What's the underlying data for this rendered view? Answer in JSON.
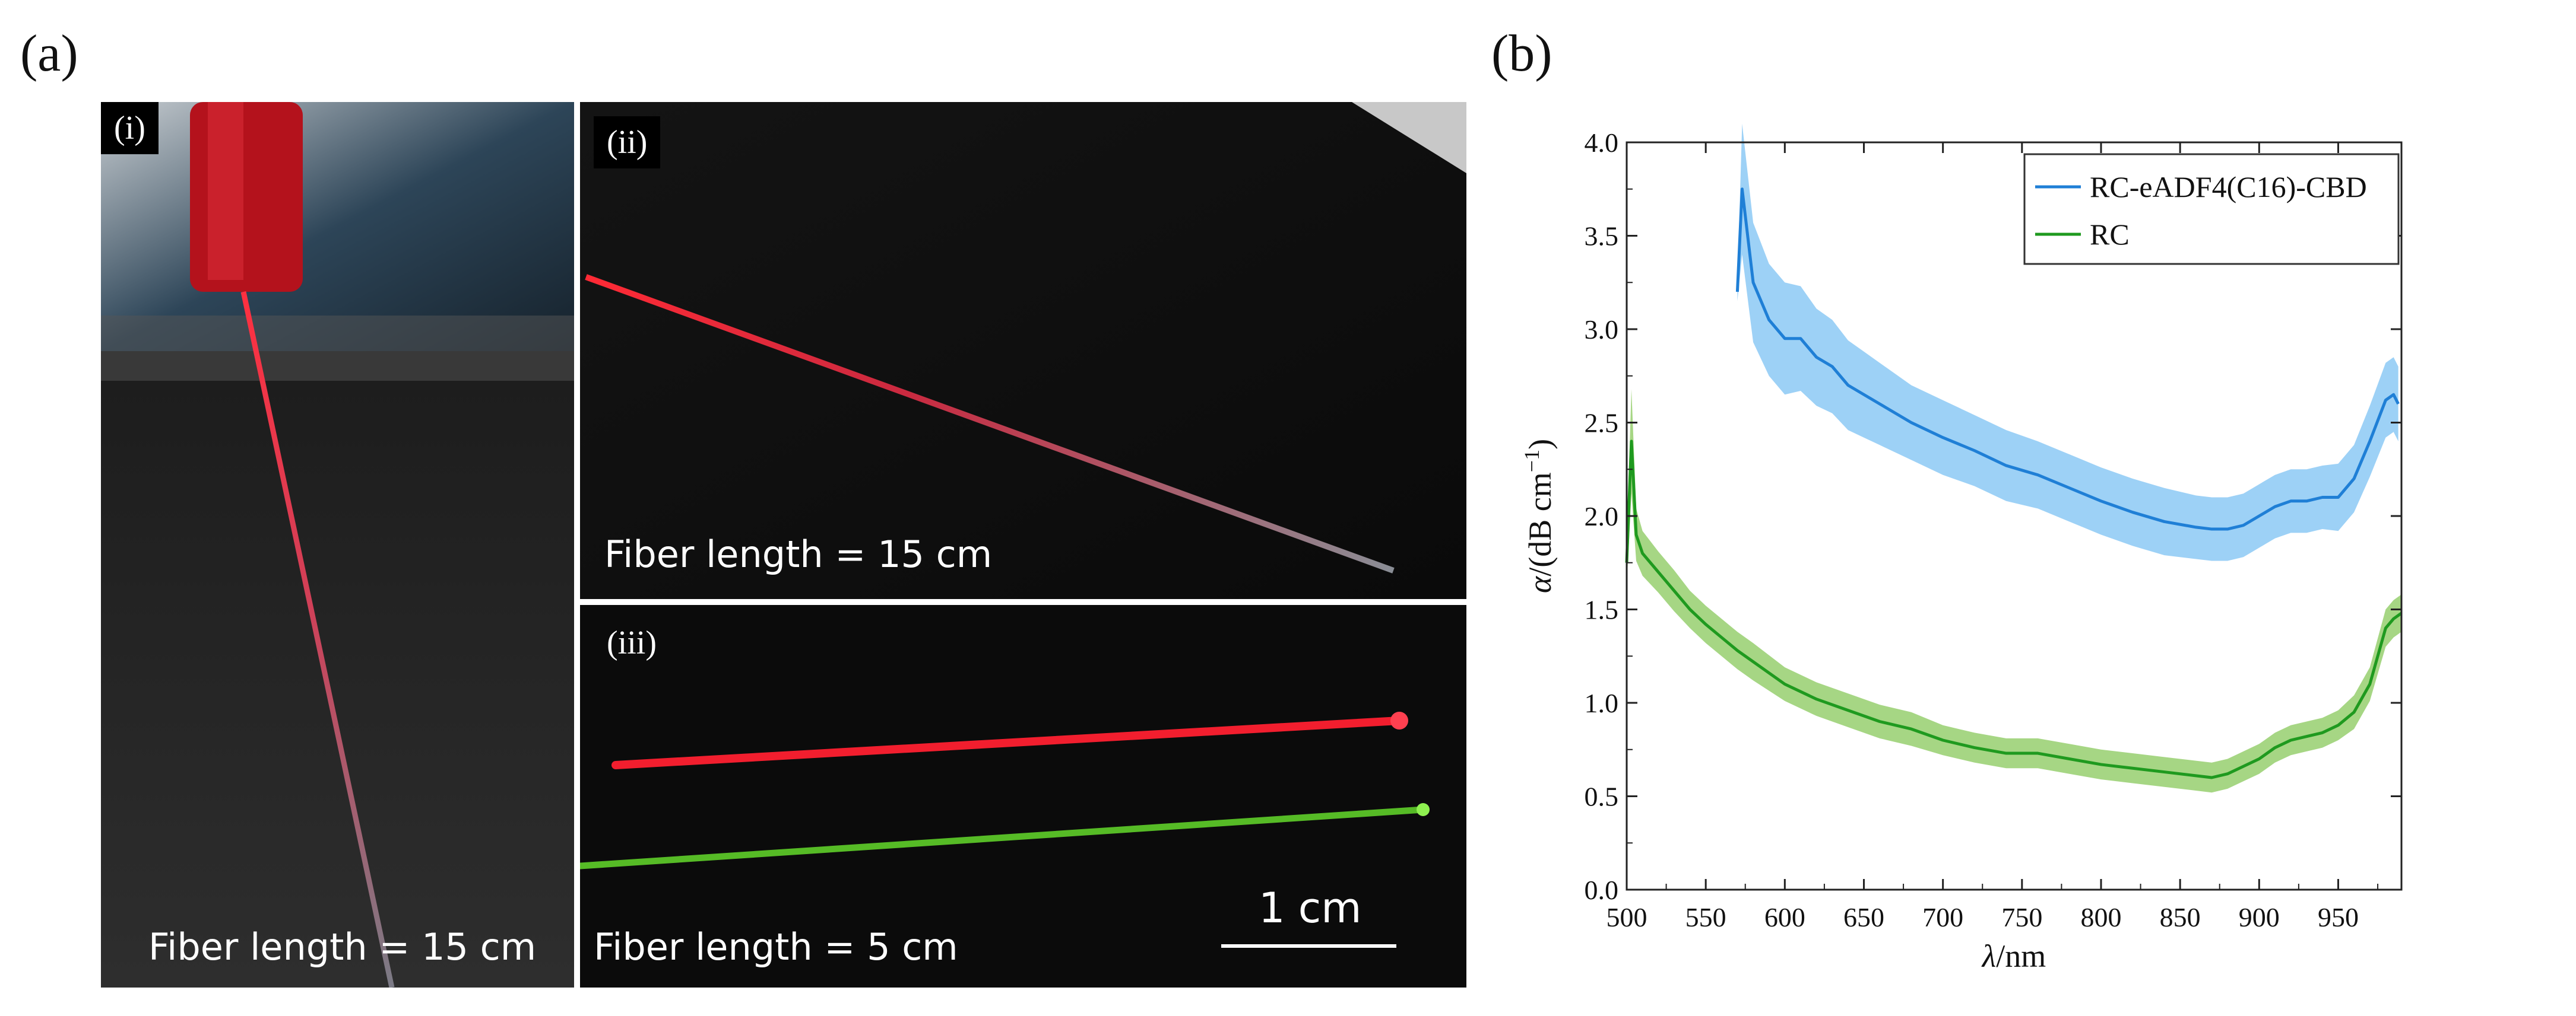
{
  "panel_a": {
    "label": "(a)",
    "subpanels": [
      {
        "id": "i",
        "tag": "(i)",
        "caption": "Fiber length = 15 cm"
      },
      {
        "id": "ii",
        "tag": "(ii)",
        "caption": "Fiber length = 15 cm"
      },
      {
        "id": "iii",
        "tag": "(iii)",
        "caption": "Fiber length = 5 cm",
        "scalebar": "1 cm"
      }
    ]
  },
  "panel_b": {
    "label": "(b)"
  },
  "colors": {
    "series_blue": "#1f7fd6",
    "band_blue": "#8cc9f5",
    "series_green": "#1f9a1f",
    "band_green": "#96cf6e",
    "laser_red": "#ff2030",
    "laser_green": "#6fe03a"
  },
  "chart_data": {
    "type": "line",
    "xlabel_symbol": "λ",
    "xlabel_unit": "/nm",
    "ylabel_symbol": "α",
    "ylabel_unit": "/(dB cm",
    "ylabel_exp": "−1",
    "ylabel_close": ")",
    "xlim": [
      500,
      990
    ],
    "ylim": [
      0.0,
      4.0
    ],
    "xticks": [
      500,
      550,
      600,
      650,
      700,
      750,
      800,
      850,
      900,
      950
    ],
    "xtick_labels": [
      "500",
      "550",
      "600",
      "650",
      "700",
      "750",
      "800",
      "850",
      "900",
      "950"
    ],
    "yticks": [
      0.0,
      0.5,
      1.0,
      1.5,
      2.0,
      2.5,
      3.0,
      3.5,
      4.0
    ],
    "ytick_labels": [
      "0.0",
      "0.5",
      "1.0",
      "1.5",
      "2.0",
      "2.5",
      "3.0",
      "3.5",
      "4.0"
    ],
    "legend_position": "top-right",
    "series": [
      {
        "name": "RC-eADF4(C16)-CBD",
        "color": "#1f7fd6",
        "band_color": "#8cc9f5",
        "x": [
          570,
          573,
          580,
          590,
          600,
          610,
          620,
          630,
          640,
          650,
          660,
          680,
          700,
          720,
          740,
          760,
          780,
          800,
          820,
          840,
          860,
          870,
          880,
          890,
          900,
          910,
          920,
          930,
          940,
          950,
          960,
          970,
          980,
          985,
          988
        ],
        "y": [
          3.2,
          3.75,
          3.25,
          3.05,
          2.95,
          2.95,
          2.85,
          2.8,
          2.7,
          2.65,
          2.6,
          2.5,
          2.42,
          2.35,
          2.27,
          2.22,
          2.15,
          2.08,
          2.02,
          1.97,
          1.94,
          1.93,
          1.93,
          1.95,
          2.0,
          2.05,
          2.08,
          2.08,
          2.1,
          2.1,
          2.2,
          2.4,
          2.62,
          2.65,
          2.6
        ],
        "band": [
          0.05,
          0.35,
          0.32,
          0.3,
          0.3,
          0.28,
          0.26,
          0.25,
          0.24,
          0.23,
          0.22,
          0.2,
          0.2,
          0.19,
          0.19,
          0.18,
          0.18,
          0.18,
          0.18,
          0.18,
          0.17,
          0.17,
          0.17,
          0.17,
          0.17,
          0.17,
          0.17,
          0.17,
          0.17,
          0.18,
          0.18,
          0.19,
          0.2,
          0.2,
          0.2
        ]
      },
      {
        "name": "RC",
        "color": "#1f9a1f",
        "band_color": "#96cf6e",
        "x": [
          500,
          503,
          506,
          510,
          520,
          530,
          540,
          550,
          560,
          570,
          580,
          600,
          620,
          640,
          660,
          680,
          700,
          720,
          740,
          760,
          780,
          800,
          820,
          840,
          860,
          870,
          880,
          890,
          900,
          910,
          920,
          930,
          940,
          950,
          960,
          970,
          980,
          985,
          990
        ],
        "y": [
          1.75,
          2.4,
          1.9,
          1.8,
          1.7,
          1.6,
          1.5,
          1.42,
          1.35,
          1.28,
          1.22,
          1.1,
          1.02,
          0.96,
          0.9,
          0.86,
          0.8,
          0.76,
          0.73,
          0.73,
          0.7,
          0.67,
          0.65,
          0.63,
          0.61,
          0.6,
          0.62,
          0.66,
          0.7,
          0.76,
          0.8,
          0.82,
          0.84,
          0.88,
          0.95,
          1.1,
          1.4,
          1.45,
          1.48
        ],
        "band": [
          0.12,
          0.28,
          0.14,
          0.12,
          0.11,
          0.11,
          0.1,
          0.1,
          0.1,
          0.1,
          0.1,
          0.09,
          0.09,
          0.09,
          0.09,
          0.09,
          0.08,
          0.08,
          0.08,
          0.08,
          0.08,
          0.08,
          0.08,
          0.08,
          0.08,
          0.08,
          0.08,
          0.08,
          0.08,
          0.08,
          0.08,
          0.08,
          0.08,
          0.08,
          0.09,
          0.09,
          0.1,
          0.1,
          0.1
        ]
      }
    ]
  }
}
